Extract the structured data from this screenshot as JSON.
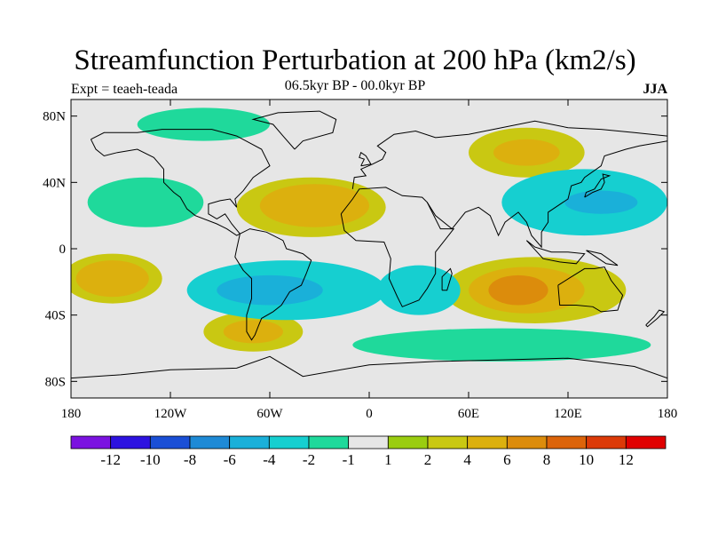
{
  "title": "Streamfunction Perturbation at 200 hPa (km2/s)",
  "left_label": "Expt = teaeh-teada",
  "center_label": "06.5kyr BP - 00.0kyr BP",
  "right_label": "JJA",
  "map": {
    "projection": "cylindrical equidistant",
    "lon_range": [
      -180,
      180
    ],
    "lat_range": [
      -90,
      90
    ],
    "lat_ticks": [
      {
        "value": 80,
        "label": "80N"
      },
      {
        "value": 40,
        "label": "40N"
      },
      {
        "value": 0,
        "label": "0"
      },
      {
        "value": -40,
        "label": "40S"
      },
      {
        "value": -80,
        "label": "80S"
      }
    ],
    "lon_ticks": [
      {
        "value": -180,
        "label": "180"
      },
      {
        "value": -120,
        "label": "120W"
      },
      {
        "value": -60,
        "label": "60W"
      },
      {
        "value": 0,
        "label": "0"
      },
      {
        "value": 60,
        "label": "60E"
      },
      {
        "value": 120,
        "label": "120E"
      },
      {
        "value": 180,
        "label": "180"
      }
    ],
    "background_color": "#e6e6e6"
  },
  "colorbar": {
    "labels": [
      "-12",
      "-10",
      "-8",
      "-6",
      "-4",
      "-2",
      "-1",
      "1",
      "2",
      "4",
      "6",
      "8",
      "10",
      "12"
    ],
    "colors": [
      "#7b12e0",
      "#2d12e0",
      "#1a4fd6",
      "#1e8ad6",
      "#1ab0d9",
      "#16cfd0",
      "#1fd99b",
      "#e6e6e6",
      "#9acd10",
      "#c9c812",
      "#dcb00e",
      "#dc8c0c",
      "#dc640a",
      "#dc3a08",
      "#e00000"
    ]
  },
  "shaded_regions": [
    {
      "name": "n-atlantic-positive",
      "lon": -35,
      "lat": 25,
      "rlon": 45,
      "rlat": 18,
      "level": "2"
    },
    {
      "name": "n-atlantic-core",
      "lon": -32,
      "lat": 27,
      "rlon": 22,
      "rlat": 8,
      "level": "6"
    },
    {
      "name": "n-atlantic-mid",
      "lon": -33,
      "lat": 26,
      "rlon": 33,
      "rlat": 13,
      "level": "4"
    },
    {
      "name": "s-pacific-positive",
      "lon": -155,
      "lat": -18,
      "rlon": 30,
      "rlat": 15,
      "level": "2"
    },
    {
      "name": "s-pacific-core",
      "lon": -155,
      "lat": -18,
      "rlon": 14,
      "rlat": 7,
      "level": "6"
    },
    {
      "name": "s-pacific-mid",
      "lon": -155,
      "lat": -18,
      "rlon": 22,
      "rlat": 11,
      "level": "4"
    },
    {
      "name": "indian-ocean-positive",
      "lon": 100,
      "lat": -25,
      "rlon": 55,
      "rlat": 20,
      "level": "2"
    },
    {
      "name": "indian-ocean-mid",
      "lon": 95,
      "lat": -25,
      "rlon": 35,
      "rlat": 14,
      "level": "4"
    },
    {
      "name": "indian-ocean-core",
      "lon": 90,
      "lat": -25,
      "rlon": 18,
      "rlat": 9,
      "level": "6"
    },
    {
      "name": "asia-positive",
      "lon": 95,
      "lat": 58,
      "rlon": 35,
      "rlat": 15,
      "level": "2"
    },
    {
      "name": "asia-mid",
      "lon": 95,
      "lat": 58,
      "rlon": 20,
      "rlat": 8,
      "level": "4"
    },
    {
      "name": "s-america-south-positive",
      "lon": -70,
      "lat": -50,
      "rlon": 30,
      "rlat": 12,
      "level": "2"
    },
    {
      "name": "s-america-south-mid",
      "lon": -70,
      "lat": -50,
      "rlon": 18,
      "rlat": 7,
      "level": "4"
    },
    {
      "name": "s-atlantic-negative",
      "lon": -50,
      "lat": -25,
      "rlon": 60,
      "rlat": 18,
      "level": "-2"
    },
    {
      "name": "s-atlantic-negative-core",
      "lon": -60,
      "lat": -25,
      "rlon": 32,
      "rlat": 9,
      "level": "-4"
    },
    {
      "name": "w-pacific-negative",
      "lon": 130,
      "lat": 28,
      "rlon": 50,
      "rlat": 20,
      "level": "-2"
    },
    {
      "name": "w-pacific-negative-core",
      "lon": 140,
      "lat": 28,
      "rlon": 22,
      "rlat": 7,
      "level": "-4"
    },
    {
      "name": "n-pacific-negative",
      "lon": -135,
      "lat": 28,
      "rlon": 35,
      "rlat": 15,
      "level": "-1"
    },
    {
      "name": "s-indian-negative",
      "lon": 30,
      "lat": -25,
      "rlon": 25,
      "rlat": 15,
      "level": "-2"
    },
    {
      "name": "southern-ocean-negative",
      "lon": 80,
      "lat": -58,
      "rlon": 90,
      "rlat": 10,
      "level": "-1"
    },
    {
      "name": "arctic-negative",
      "lon": -100,
      "lat": 75,
      "rlon": 40,
      "rlat": 10,
      "level": "-1"
    }
  ]
}
